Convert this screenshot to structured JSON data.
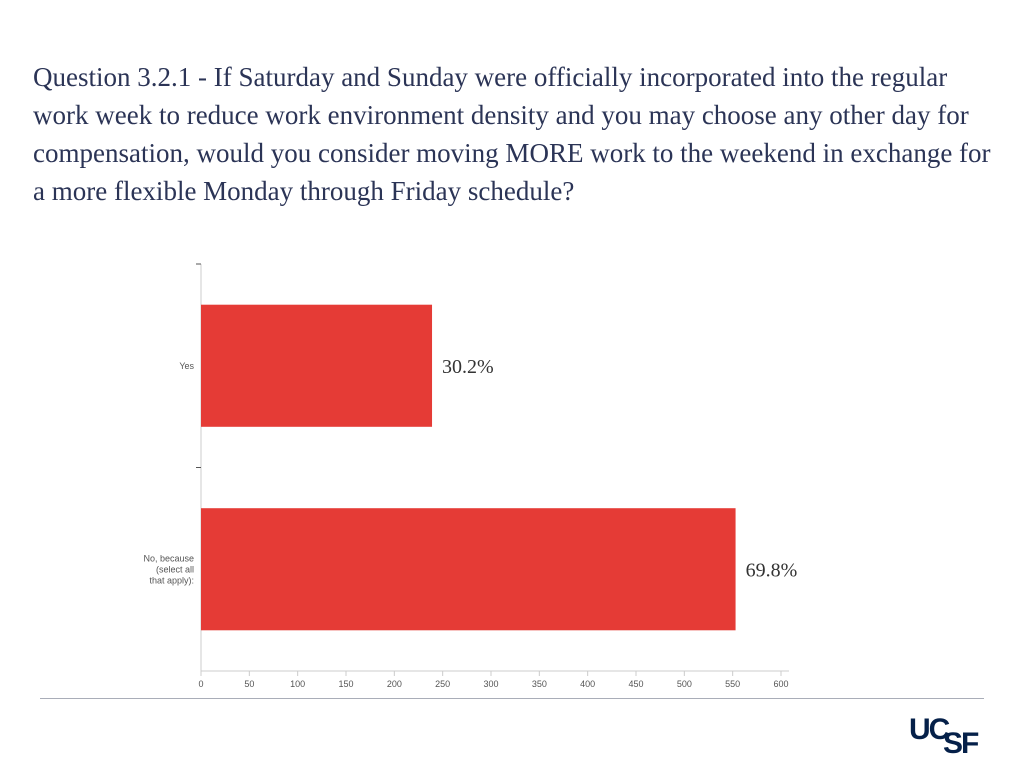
{
  "question": "Question 3.2.1 - If Saturday and Sunday were officially incorporated into the regular work week to reduce work environment density and you may choose any other day for compensation, would you consider moving MORE work to the weekend in exchange for a more flexible Monday through Friday schedule?",
  "chart_data": {
    "type": "bar",
    "orientation": "horizontal",
    "categories": [
      "Yes",
      "No, because (select all that apply):"
    ],
    "values": [
      239,
      553
    ],
    "data_labels": [
      "30.2%",
      "69.8%"
    ],
    "xlim": [
      0,
      600
    ],
    "x_ticks": [
      "0",
      "50",
      "100",
      "150",
      "200",
      "250",
      "300",
      "350",
      "400",
      "450",
      "500",
      "550",
      "600"
    ],
    "bar_color": "#e53b36",
    "grid": false
  },
  "logo": {
    "uc": "UC",
    "sf": "SF"
  }
}
